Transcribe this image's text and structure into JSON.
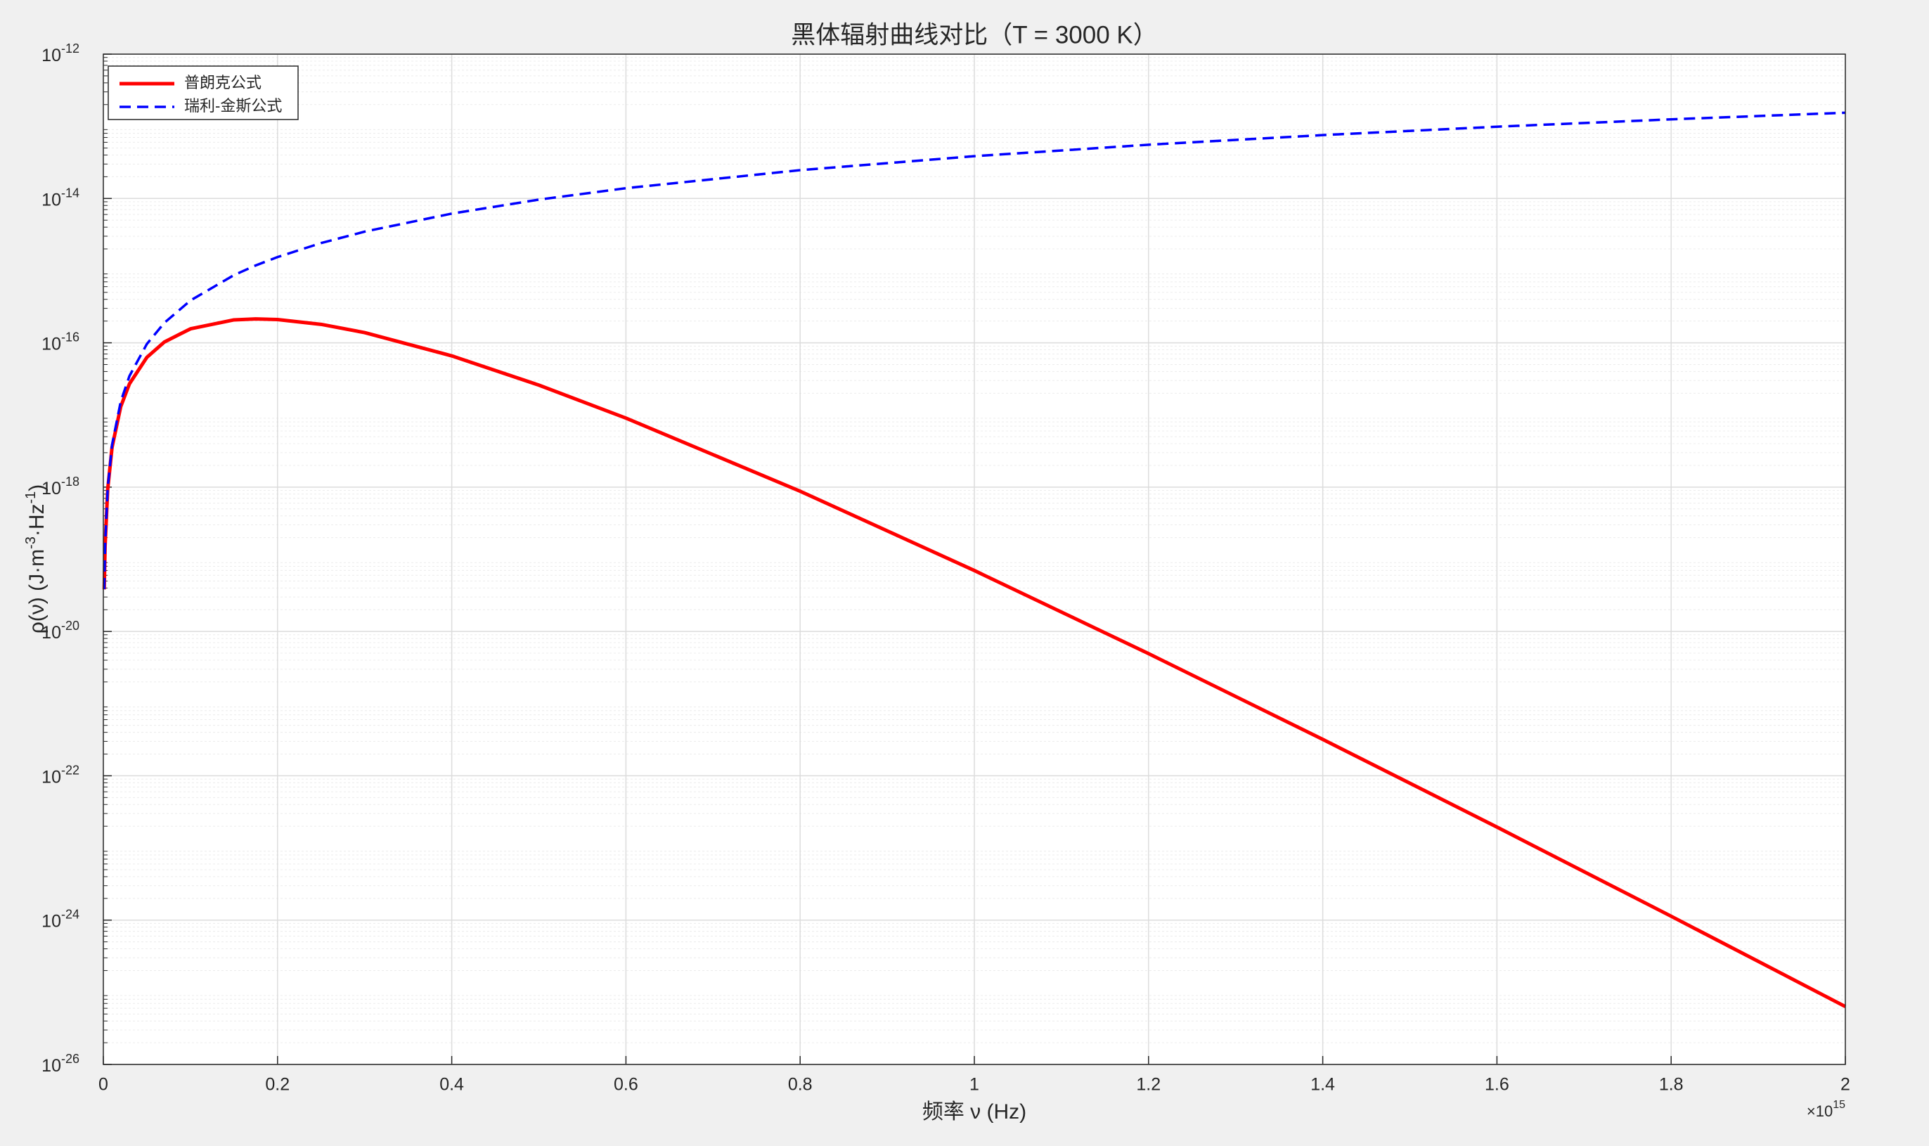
{
  "chart_data": {
    "type": "line",
    "title": "黑体辐射曲线对比（T = 3000 K）",
    "xlabel": "频率 ν (Hz)",
    "x_exponent_base": "×10",
    "x_exponent": "15",
    "ylabel_parts": [
      "ρ(ν) (J·m",
      "-3",
      "·Hz",
      "-1",
      ")"
    ],
    "yscale": "log",
    "grid": true,
    "minor_grid": true,
    "legend": "northwest",
    "x": [
      1000000000000.0,
      2000000000000.0,
      5000000000000.0,
      10000000000000.0,
      20000000000000.0,
      30000000000000.0,
      50000000000000.0,
      70000000000000.0,
      100000000000000.0,
      150000000000000.0,
      175000000000000.0,
      200000000000000.0,
      250000000000000.0,
      300000000000000.0,
      400000000000000.0,
      500000000000000.0,
      600000000000000.0,
      800000000000000.0,
      1000000000000000.0,
      1200000000000000.0,
      1400000000000000.0,
      1600000000000000.0,
      1800000000000000.0,
      2000000000000000.0
    ],
    "series": [
      {
        "name": "普朗克公式",
        "color": "#ff0000",
        "linestyle": "solid",
        "values": [
          3.826e-20,
          1.518e-19,
          9.261e-19,
          3.557e-18,
          1.309e-17,
          2.705e-17,
          6.294e-17,
          1.0253e-16,
          1.5615e-16,
          2.079e-16,
          2.144e-16,
          2.1e-16,
          1.801e-16,
          1.385e-16,
          6.59e-17,
          2.593e-17,
          9.05e-18,
          8.77e-19,
          6.99e-20,
          4.93e-21,
          3.196e-22,
          1.947e-23,
          1.132e-24,
          6.34e-26
        ]
      },
      {
        "name": "瑞利-金斯公式",
        "color": "#0000ff",
        "linestyle": "dashed",
        "values": [
          3.856e-20,
          1.542e-19,
          9.64e-19,
          3.856e-18,
          1.542e-17,
          3.47e-17,
          9.64e-17,
          1.889e-16,
          3.856e-16,
          8.676e-16,
          1.181e-15,
          1.542e-15,
          2.41e-15,
          3.47e-15,
          6.17e-15,
          9.64e-15,
          1.388e-14,
          2.468e-14,
          3.856e-14,
          5.553e-14,
          7.558e-14,
          9.871e-14,
          1.249e-13,
          1.542e-13
        ]
      }
    ],
    "xlim": [
      0,
      2000000000000000.0
    ],
    "xticks": [
      0,
      {
        "value": 200000000000000.0,
        "label": "0.2"
      },
      {
        "value": 400000000000000.0,
        "label": "0.4"
      },
      {
        "value": 600000000000000.0,
        "label": "0.6"
      },
      {
        "value": 800000000000000.0,
        "label": "0.8"
      },
      {
        "value": 1000000000000000.0,
        "label": "1"
      },
      {
        "value": 1200000000000000.0,
        "label": "1.2"
      },
      {
        "value": 1400000000000000.0,
        "label": "1.4"
      },
      {
        "value": 1600000000000000.0,
        "label": "1.6"
      },
      {
        "value": 1800000000000000.0,
        "label": "1.8"
      },
      {
        "value": 2000000000000000.0,
        "label": "2"
      }
    ],
    "ylim": [
      1e-26,
      1e-12
    ],
    "yticks": [
      {
        "value": 1e-26,
        "label": "10",
        "sup": "-26"
      },
      {
        "value": 1e-24,
        "label": "10",
        "sup": "-24"
      },
      {
        "value": 1e-22,
        "label": "10",
        "sup": "-22"
      },
      {
        "value": 1e-20,
        "label": "10",
        "sup": "-20"
      },
      {
        "value": 1e-18,
        "label": "10",
        "sup": "-18"
      },
      {
        "value": 1e-16,
        "label": "10",
        "sup": "-16"
      },
      {
        "value": 1e-14,
        "label": "10",
        "sup": "-14"
      },
      {
        "value": 1e-12,
        "label": "10",
        "sup": "-12"
      }
    ]
  }
}
